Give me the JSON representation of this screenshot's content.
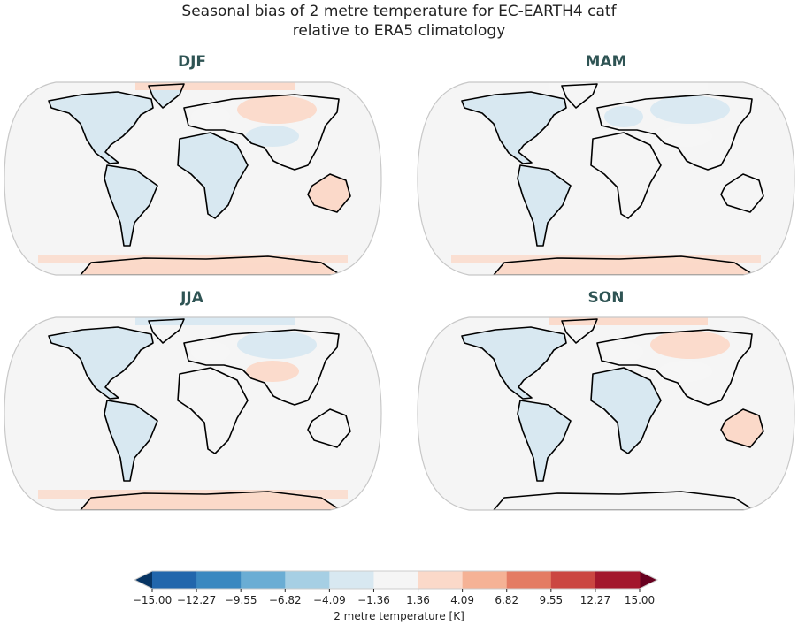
{
  "chart_data": {
    "type": "heatmap",
    "title": [
      "Seasonal bias of 2 metre temperature for EC-EARTH4 catf",
      "relative to ERA5 climatology"
    ],
    "projection": "Robinson",
    "panels": [
      {
        "name": "DJF",
        "bias_by_region": {
          "north_america": -2,
          "greenland": -2,
          "south_america": -2,
          "europe": 0,
          "siberia": 3,
          "central_asia": -2,
          "africa": -2,
          "australia": 1.5,
          "arctic": 2,
          "antarctica": 2
        }
      },
      {
        "name": "MAM",
        "bias_by_region": {
          "north_america": -2.5,
          "greenland": -1,
          "south_america": -2,
          "europe": -2,
          "siberia": -2,
          "central_asia": 0,
          "africa": 0,
          "australia": 0,
          "arctic": 0,
          "antarctica": 2
        }
      },
      {
        "name": "JJA",
        "bias_by_region": {
          "north_america": -2,
          "greenland": 0,
          "south_america": -2,
          "europe": 0,
          "siberia": -2,
          "central_asia": 2,
          "africa": 0,
          "australia": 0,
          "arctic": -2,
          "antarctica": 2
        }
      },
      {
        "name": "SON",
        "bias_by_region": {
          "north_america": -2,
          "greenland": 0,
          "south_america": -2,
          "europe": 0,
          "siberia": 2,
          "central_asia": 0,
          "africa": -2,
          "australia": 2,
          "arctic": 2,
          "antarctica": 0
        }
      }
    ],
    "colorbar": {
      "label": "2 metre temperature [K]",
      "ticks": [
        "−15.00",
        "−12.27",
        "−9.55",
        "−6.82",
        "−4.09",
        "−1.36",
        "1.36",
        "4.09",
        "6.82",
        "9.55",
        "12.27",
        "15.00"
      ],
      "range": [
        -15,
        15
      ],
      "extend": "both",
      "colors": [
        "#2166ac",
        "#3a88c0",
        "#6aadd4",
        "#a6cfe4",
        "#d8e8f1",
        "#f5f5f5",
        "#fbd9c9",
        "#f5b295",
        "#e47c64",
        "#cb4641",
        "#a3172c"
      ],
      "under_color": "#073463",
      "over_color": "#67001f"
    }
  }
}
